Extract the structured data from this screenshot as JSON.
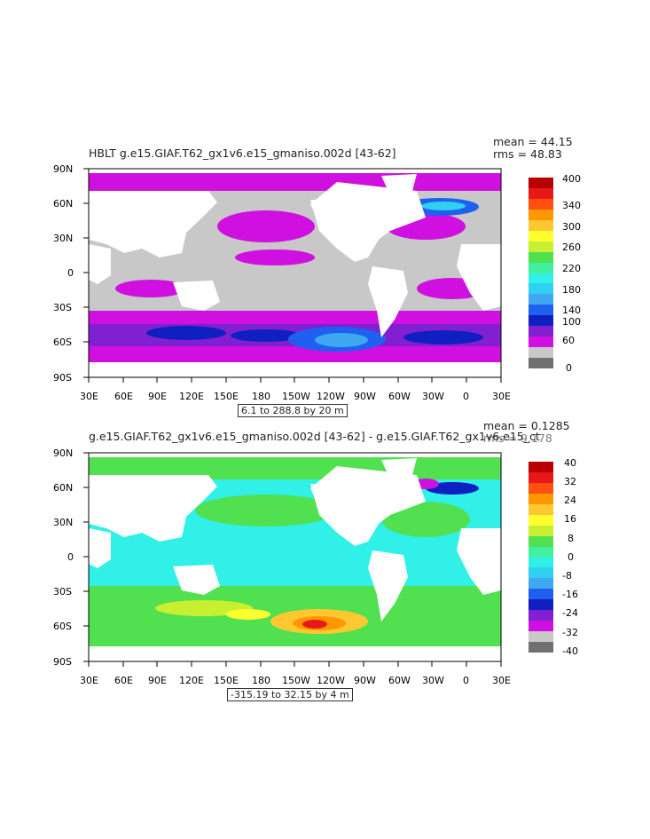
{
  "panels": [
    {
      "title": "HBLT g.e15.GIAF.T62_gx1v6.e15_gmaniso.002d [43-62]",
      "mean": "mean = 44.15",
      "rms": "rms = 48.83",
      "range": "6.1 to 288.8 by 20 m",
      "colorbar_labels": [
        "400",
        "340",
        "300",
        "260",
        "220",
        "180",
        "140",
        "100",
        "60",
        "0"
      ],
      "colorbar_colors": [
        "#b80000",
        "#e81818",
        "#ff5010",
        "#ff9800",
        "#ffc830",
        "#ffff30",
        "#c8f030",
        "#50e050",
        "#40f0a0",
        "#30f0e8",
        "#30d0f0",
        "#40a8f0",
        "#2060f0",
        "#1020c0",
        "#8020d0",
        "#d010e0",
        "#c8c8c8",
        "#707070"
      ]
    },
    {
      "title": "g.e15.GIAF.T62_gx1v6.e15_gmaniso.002d [43-62] - g.e15.GIAF.T62_gx1v6.e15_ct",
      "mean": "mean = 0.1285",
      "rms": "rms = 9.178",
      "range": "-315.19 to 32.15 by 4 m",
      "colorbar_labels": [
        "40",
        "32",
        "24",
        "16",
        "8",
        "0",
        "-8",
        "-16",
        "-24",
        "-32",
        "-40"
      ],
      "colorbar_colors": [
        "#b80000",
        "#e81818",
        "#ff5010",
        "#ff9800",
        "#ffc830",
        "#ffff30",
        "#c8f030",
        "#50e050",
        "#40f0a0",
        "#30f0e8",
        "#30d0f0",
        "#40a8f0",
        "#2060f0",
        "#1020c0",
        "#8020d0",
        "#d010e0",
        "#c8c8c8",
        "#707070"
      ]
    }
  ],
  "lat_labels": [
    "90N",
    "60N",
    "30N",
    "0",
    "30S",
    "60S",
    "90S"
  ],
  "lon_labels": [
    "30E",
    "60E",
    "90E",
    "120E",
    "150E",
    "180",
    "150W",
    "120W",
    "90W",
    "60W",
    "30W",
    "0",
    "30E"
  ]
}
